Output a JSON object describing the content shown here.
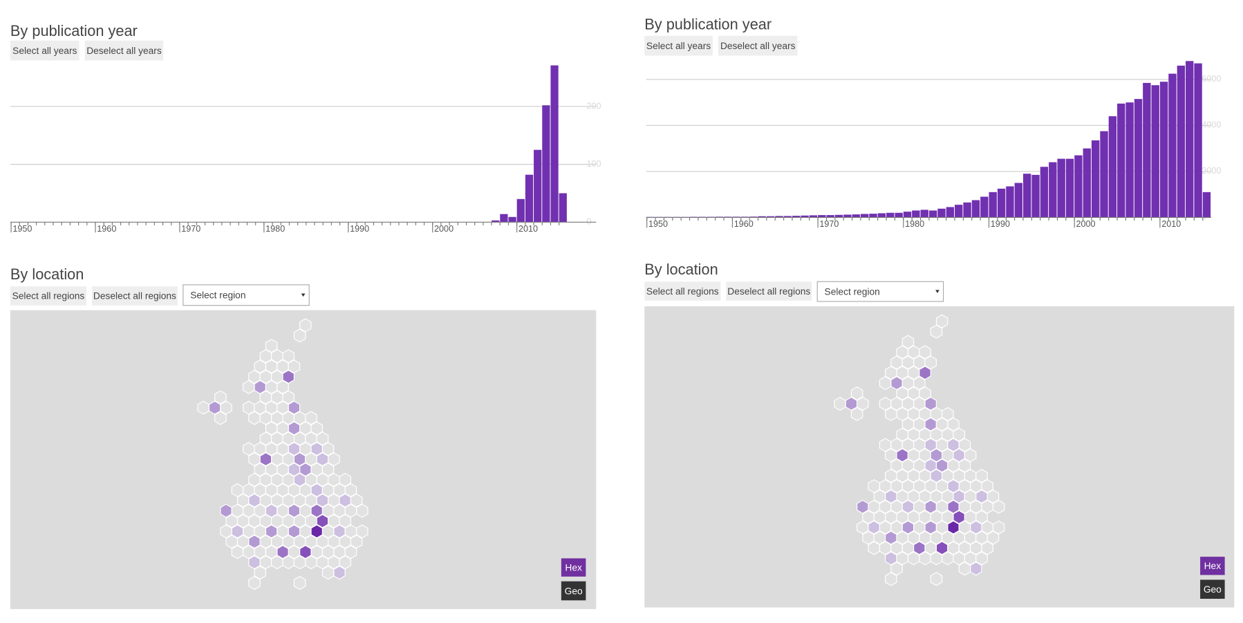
{
  "panels": [
    {
      "year_title": "By publication year",
      "select_all_years": "Select all years",
      "deselect_all_years": "Deselect all years",
      "chart": {
        "type": "bar",
        "color": "#7030b0",
        "x": [
          1950,
          1951,
          1952,
          1953,
          1954,
          1955,
          1956,
          1957,
          1958,
          1959,
          1960,
          1961,
          1962,
          1963,
          1964,
          1965,
          1966,
          1967,
          1968,
          1969,
          1970,
          1971,
          1972,
          1973,
          1974,
          1975,
          1976,
          1977,
          1978,
          1979,
          1980,
          1981,
          1982,
          1983,
          1984,
          1985,
          1986,
          1987,
          1988,
          1989,
          1990,
          1991,
          1992,
          1993,
          1994,
          1995,
          1996,
          1997,
          1998,
          1999,
          2000,
          2001,
          2002,
          2003,
          2004,
          2005,
          2006,
          2007,
          2008,
          2009,
          2010,
          2011,
          2012,
          2013,
          2014,
          2015
        ],
        "values": [
          0,
          0,
          0,
          0,
          0,
          0,
          0,
          0,
          0,
          0,
          0,
          0,
          0,
          0,
          0,
          0,
          0,
          0,
          0,
          0,
          0,
          0,
          0,
          0,
          0,
          0,
          0,
          0,
          0,
          0,
          0,
          0,
          0,
          0,
          0,
          0,
          0,
          0,
          0,
          0,
          0,
          0,
          0,
          0,
          0,
          0,
          0,
          0,
          0,
          0,
          0,
          0,
          0,
          0,
          0,
          0,
          0,
          3,
          14,
          9,
          40,
          82,
          125,
          202,
          271,
          50
        ],
        "xlim": [
          1950,
          2019.4
        ],
        "xticks": [
          1950,
          1960,
          1970,
          1980,
          1990,
          2000,
          2010
        ],
        "ylim": [
          0,
          270
        ],
        "yticks": [
          0,
          100,
          200
        ],
        "grid": true
      },
      "location_title": "By location",
      "select_all_regions": "Select all regions",
      "deselect_all_regions": "Deselect all regions",
      "select_region": "Select region",
      "hex_button": "Hex",
      "geo_button": "Geo"
    },
    {
      "year_title": "By publication year",
      "select_all_years": "Select all years",
      "deselect_all_years": "Deselect all years",
      "chart": {
        "type": "bar",
        "color": "#7030b0",
        "x": [
          1950,
          1951,
          1952,
          1953,
          1954,
          1955,
          1956,
          1957,
          1958,
          1959,
          1960,
          1961,
          1962,
          1963,
          1964,
          1965,
          1966,
          1967,
          1968,
          1969,
          1970,
          1971,
          1972,
          1973,
          1974,
          1975,
          1976,
          1977,
          1978,
          1979,
          1980,
          1981,
          1982,
          1983,
          1984,
          1985,
          1986,
          1987,
          1988,
          1989,
          1990,
          1991,
          1992,
          1993,
          1994,
          1995,
          1996,
          1997,
          1998,
          1999,
          2000,
          2001,
          2002,
          2003,
          2004,
          2005,
          2006,
          2007,
          2008,
          2009,
          2010,
          2011,
          2012,
          2013,
          2014,
          2015
        ],
        "values": [
          20,
          20,
          20,
          20,
          20,
          25,
          25,
          25,
          30,
          30,
          30,
          30,
          35,
          50,
          50,
          60,
          60,
          70,
          80,
          90,
          100,
          100,
          110,
          120,
          130,
          150,
          160,
          180,
          200,
          200,
          250,
          300,
          330,
          300,
          380,
          450,
          550,
          650,
          750,
          900,
          1100,
          1250,
          1350,
          1500,
          1900,
          1850,
          2200,
          2400,
          2550,
          2550,
          2700,
          3000,
          3350,
          3750,
          4400,
          4950,
          5000,
          5150,
          5850,
          5750,
          5900,
          6250,
          6600,
          6800,
          6700,
          1100
        ],
        "xlim": [
          1950,
          2016
        ],
        "xticks": [
          1950,
          1960,
          1970,
          1980,
          1990,
          2000,
          2010
        ],
        "ylim": [
          0,
          7000
        ],
        "yticks": [
          0,
          2000,
          4000,
          6000
        ],
        "grid": true
      },
      "location_title": "By location",
      "select_all_regions": "Select all regions",
      "deselect_all_regions": "Deselect all regions",
      "select_region": "Select region",
      "hex_button": "Hex",
      "geo_button": "Geo"
    }
  ]
}
